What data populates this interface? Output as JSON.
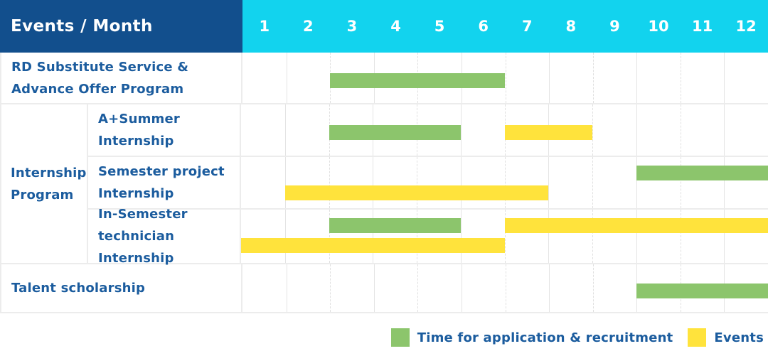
{
  "colors": {
    "header_bg": "#124F8D",
    "months_bg": "#12D3EE",
    "application_green": "#8CC56C",
    "event_yellow": "#FFE33C",
    "label_text": "#1B5C9E",
    "grid_border": "#ECECEC"
  },
  "header": {
    "title": "Events / Month",
    "months": [
      "1",
      "2",
      "3",
      "4",
      "5",
      "6",
      "7",
      "8",
      "9",
      "10",
      "11",
      "12"
    ]
  },
  "legend": {
    "items": [
      {
        "label": "Time for application & recruitment",
        "series": "application"
      },
      {
        "label": "Events",
        "series": "event"
      }
    ]
  },
  "chart_data": {
    "type": "gantt",
    "title": "Events / Month",
    "x_axis": {
      "label": "Month",
      "ticks": [
        1,
        2,
        3,
        4,
        5,
        6,
        7,
        8,
        9,
        10,
        11,
        12
      ],
      "range": [
        1,
        12
      ]
    },
    "series_legend": [
      {
        "name": "Time for application & recruitment",
        "color": "#8CC56C"
      },
      {
        "name": "Events",
        "color": "#FFE33C"
      }
    ],
    "rows": [
      {
        "group": null,
        "label": "RD Substitute Service &\nAdvance Offer Program",
        "bars": [
          {
            "series": "application",
            "start_month": 3,
            "end_month": 6,
            "lane": "center"
          }
        ]
      },
      {
        "group": "Internship\nProgram",
        "label": "A+Summer\nInternship",
        "bars": [
          {
            "series": "application",
            "start_month": 3,
            "end_month": 5,
            "lane": "center"
          },
          {
            "series": "event",
            "start_month": 7,
            "end_month": 8,
            "lane": "center"
          }
        ]
      },
      {
        "group": "Internship\nProgram",
        "label": "Semester project\nInternship",
        "bars": [
          {
            "series": "application",
            "start_month": 10,
            "end_month": 12,
            "lane": "top"
          },
          {
            "series": "event",
            "start_month": 2,
            "end_month": 7,
            "lane": "bottom"
          }
        ]
      },
      {
        "group": "Internship\nProgram",
        "label": "In-Semester\ntechnician Internship",
        "bars": [
          {
            "series": "application",
            "start_month": 3,
            "end_month": 5,
            "lane": "top"
          },
          {
            "series": "event",
            "start_month": 7,
            "end_month": 12,
            "lane": "top"
          },
          {
            "series": "event",
            "start_month": 1,
            "end_month": 6,
            "lane": "bottom"
          }
        ]
      },
      {
        "group": null,
        "label": "Talent scholarship",
        "bars": [
          {
            "series": "application",
            "start_month": 10,
            "end_month": 12,
            "lane": "center"
          }
        ]
      }
    ]
  }
}
